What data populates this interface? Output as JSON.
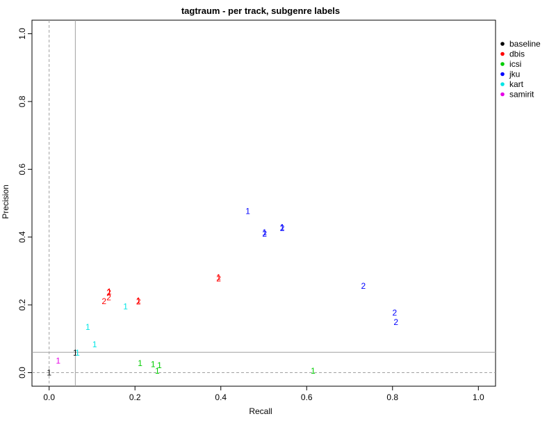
{
  "chart_data": {
    "type": "scatter",
    "title": "tagtraum - per track, subgenre labels",
    "xlabel": "Recall",
    "ylabel": "Precision",
    "xlim": [
      -0.04,
      1.04
    ],
    "ylim": [
      -0.04,
      1.04
    ],
    "x_ticks": [
      "0.0",
      "0.2",
      "0.4",
      "0.6",
      "0.8",
      "1.0"
    ],
    "y_ticks": [
      "0.0",
      "0.2",
      "0.4",
      "0.6",
      "0.8",
      "1.0"
    ],
    "x_tick_values": [
      0,
      0.2,
      0.4,
      0.6,
      0.8,
      1.0
    ],
    "y_tick_values": [
      0,
      0.2,
      0.4,
      0.6,
      0.8,
      1.0
    ],
    "grid": false,
    "legend_position": "right",
    "reference_lines": {
      "baseline_x": 0.061,
      "baseline_y": 0.06,
      "zero_x": 0.0,
      "zero_y": 0.0
    },
    "series": [
      {
        "name": "baseline",
        "color": "#000000",
        "points": [
          {
            "x": 0.0,
            "y": 0.0,
            "label": "1"
          },
          {
            "x": 0.061,
            "y": 0.059,
            "label": "1"
          }
        ]
      },
      {
        "name": "dbis",
        "color": "#ff0000",
        "points": [
          {
            "x": 0.128,
            "y": 0.21,
            "label": "2"
          },
          {
            "x": 0.139,
            "y": 0.222,
            "label": "2"
          },
          {
            "x": 0.139,
            "y": 0.236,
            "label": "2"
          },
          {
            "x": 0.14,
            "y": 0.239,
            "label": "1"
          },
          {
            "x": 0.208,
            "y": 0.209,
            "label": "2"
          },
          {
            "x": 0.208,
            "y": 0.213,
            "label": "1"
          },
          {
            "x": 0.395,
            "y": 0.277,
            "label": "2"
          },
          {
            "x": 0.395,
            "y": 0.281,
            "label": "1"
          }
        ]
      },
      {
        "name": "icsi",
        "color": "#00cd00",
        "points": [
          {
            "x": 0.212,
            "y": 0.028,
            "label": "1"
          },
          {
            "x": 0.242,
            "y": 0.025,
            "label": "1"
          },
          {
            "x": 0.257,
            "y": 0.022,
            "label": "1"
          },
          {
            "x": 0.252,
            "y": 0.005,
            "label": "1"
          },
          {
            "x": 0.615,
            "y": 0.005,
            "label": "1"
          }
        ]
      },
      {
        "name": "jku",
        "color": "#0000ff",
        "points": [
          {
            "x": 0.463,
            "y": 0.476,
            "label": "1"
          },
          {
            "x": 0.502,
            "y": 0.41,
            "label": "2"
          },
          {
            "x": 0.502,
            "y": 0.414,
            "label": "1"
          },
          {
            "x": 0.543,
            "y": 0.426,
            "label": "2"
          },
          {
            "x": 0.543,
            "y": 0.429,
            "label": "1"
          },
          {
            "x": 0.732,
            "y": 0.256,
            "label": "2"
          },
          {
            "x": 0.805,
            "y": 0.177,
            "label": "2"
          },
          {
            "x": 0.808,
            "y": 0.149,
            "label": "2"
          }
        ]
      },
      {
        "name": "kart",
        "color": "#00e5e5",
        "points": [
          {
            "x": 0.178,
            "y": 0.195,
            "label": "1"
          },
          {
            "x": 0.09,
            "y": 0.135,
            "label": "1"
          },
          {
            "x": 0.106,
            "y": 0.083,
            "label": "1"
          },
          {
            "x": 0.066,
            "y": 0.059,
            "label": "1"
          }
        ]
      },
      {
        "name": "samirit",
        "color": "#e600e6",
        "points": [
          {
            "x": 0.021,
            "y": 0.035,
            "label": "1"
          }
        ]
      }
    ]
  }
}
